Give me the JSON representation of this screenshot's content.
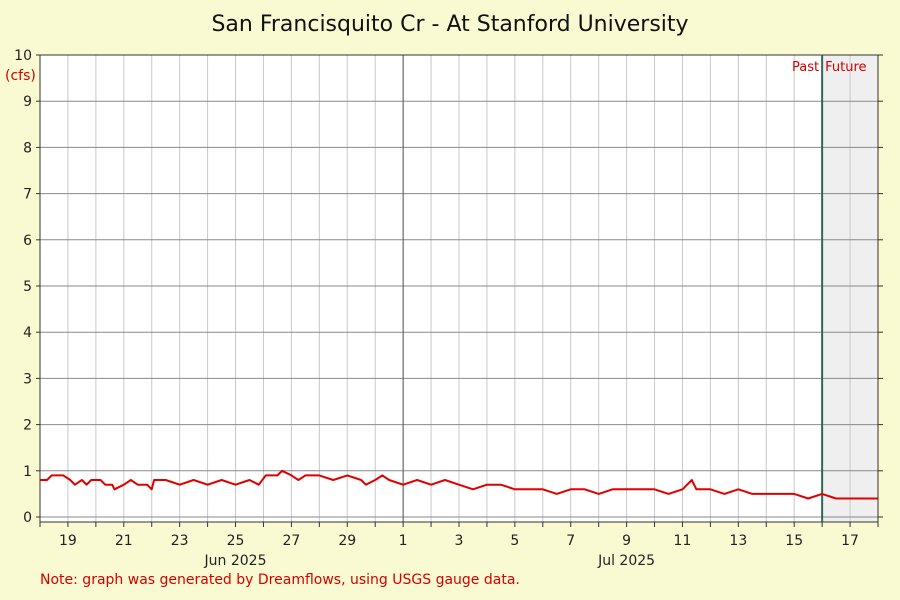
{
  "chart_data": {
    "type": "line",
    "title": "San Francisquito Cr - At Stanford University",
    "ylabel": "(cfs)",
    "xlabel": "",
    "ylim": [
      0,
      10
    ],
    "y_ticks": [
      "0",
      "1",
      "2",
      "3",
      "4",
      "5",
      "6",
      "7",
      "8",
      "9",
      "10"
    ],
    "xlim": [
      "2025-06-18",
      "2025-07-18"
    ],
    "x_day_ticks": [
      {
        "date": "2025-06-19",
        "label": "19"
      },
      {
        "date": "2025-06-21",
        "label": "21"
      },
      {
        "date": "2025-06-23",
        "label": "23"
      },
      {
        "date": "2025-06-25",
        "label": "25"
      },
      {
        "date": "2025-06-27",
        "label": "27"
      },
      {
        "date": "2025-06-29",
        "label": "29"
      },
      {
        "date": "2025-07-01",
        "label": "1"
      },
      {
        "date": "2025-07-03",
        "label": "3"
      },
      {
        "date": "2025-07-05",
        "label": "5"
      },
      {
        "date": "2025-07-07",
        "label": "7"
      },
      {
        "date": "2025-07-09",
        "label": "9"
      },
      {
        "date": "2025-07-11",
        "label": "11"
      },
      {
        "date": "2025-07-13",
        "label": "13"
      },
      {
        "date": "2025-07-15",
        "label": "15"
      },
      {
        "date": "2025-07-17",
        "label": "17"
      }
    ],
    "x_month_labels": [
      {
        "date": "2025-06-25",
        "label": "Jun 2025"
      },
      {
        "date": "2025-07-09",
        "label": "Jul 2025"
      }
    ],
    "month_boundary": "2025-07-01",
    "now": "2025-07-16",
    "past_label": "Past",
    "future_label": "Future",
    "series": [
      {
        "color": "#e00000",
        "points": [
          [
            "2025-06-18",
            0.8
          ],
          [
            "2025-06-18 06:00",
            0.8
          ],
          [
            "2025-06-18 10:00",
            0.9
          ],
          [
            "2025-06-18 20:00",
            0.9
          ],
          [
            "2025-06-19 02:00",
            0.8
          ],
          [
            "2025-06-19 06:00",
            0.7
          ],
          [
            "2025-06-19 12:00",
            0.8
          ],
          [
            "2025-06-19 16:00",
            0.7
          ],
          [
            "2025-06-19 20:00",
            0.8
          ],
          [
            "2025-06-20 04:00",
            0.8
          ],
          [
            "2025-06-20 08:00",
            0.7
          ],
          [
            "2025-06-20 14:00",
            0.7
          ],
          [
            "2025-06-20 16:00",
            0.6
          ],
          [
            "2025-06-21",
            0.7
          ],
          [
            "2025-06-21 06:00",
            0.8
          ],
          [
            "2025-06-21 12:00",
            0.7
          ],
          [
            "2025-06-21 20:00",
            0.7
          ],
          [
            "2025-06-22",
            0.6
          ],
          [
            "2025-06-22 02:00",
            0.8
          ],
          [
            "2025-06-22 08:00",
            0.8
          ],
          [
            "2025-06-22 12:00",
            0.8
          ],
          [
            "2025-06-23",
            0.7
          ],
          [
            "2025-06-23 12:00",
            0.8
          ],
          [
            "2025-06-24",
            0.7
          ],
          [
            "2025-06-24 12:00",
            0.8
          ],
          [
            "2025-06-25",
            0.7
          ],
          [
            "2025-06-25 12:00",
            0.8
          ],
          [
            "2025-06-25 20:00",
            0.7
          ],
          [
            "2025-06-26 02:00",
            0.9
          ],
          [
            "2025-06-26 12:00",
            0.9
          ],
          [
            "2025-06-26 16:00",
            1.0
          ],
          [
            "2025-06-27",
            0.9
          ],
          [
            "2025-06-27 06:00",
            0.8
          ],
          [
            "2025-06-27 12:00",
            0.9
          ],
          [
            "2025-06-28",
            0.9
          ],
          [
            "2025-06-28 12:00",
            0.8
          ],
          [
            "2025-06-29",
            0.9
          ],
          [
            "2025-06-29 12:00",
            0.8
          ],
          [
            "2025-06-29 16:00",
            0.7
          ],
          [
            "2025-06-30",
            0.8
          ],
          [
            "2025-06-30 06:00",
            0.9
          ],
          [
            "2025-06-30 12:00",
            0.8
          ],
          [
            "2025-07-01",
            0.7
          ],
          [
            "2025-07-01 12:00",
            0.8
          ],
          [
            "2025-07-02",
            0.7
          ],
          [
            "2025-07-02 12:00",
            0.8
          ],
          [
            "2025-07-03",
            0.7
          ],
          [
            "2025-07-03 12:00",
            0.6
          ],
          [
            "2025-07-04",
            0.7
          ],
          [
            "2025-07-04 12:00",
            0.7
          ],
          [
            "2025-07-05",
            0.6
          ],
          [
            "2025-07-05 12:00",
            0.6
          ],
          [
            "2025-07-06",
            0.6
          ],
          [
            "2025-07-06 12:00",
            0.5
          ],
          [
            "2025-07-07",
            0.6
          ],
          [
            "2025-07-07 12:00",
            0.6
          ],
          [
            "2025-07-08",
            0.5
          ],
          [
            "2025-07-08 12:00",
            0.6
          ],
          [
            "2025-07-09",
            0.6
          ],
          [
            "2025-07-09 12:00",
            0.6
          ],
          [
            "2025-07-10",
            0.6
          ],
          [
            "2025-07-10 12:00",
            0.5
          ],
          [
            "2025-07-11",
            0.6
          ],
          [
            "2025-07-11 04:00",
            0.7
          ],
          [
            "2025-07-11 08:00",
            0.8
          ],
          [
            "2025-07-11 12:00",
            0.6
          ],
          [
            "2025-07-12",
            0.6
          ],
          [
            "2025-07-12 12:00",
            0.5
          ],
          [
            "2025-07-13",
            0.6
          ],
          [
            "2025-07-13 12:00",
            0.5
          ],
          [
            "2025-07-14",
            0.5
          ],
          [
            "2025-07-14 12:00",
            0.5
          ],
          [
            "2025-07-15",
            0.5
          ],
          [
            "2025-07-15 12:00",
            0.4
          ],
          [
            "2025-07-16",
            0.5
          ],
          [
            "2025-07-16 12:00",
            0.4
          ],
          [
            "2025-07-17",
            0.4
          ],
          [
            "2025-07-17 12:00",
            0.4
          ],
          [
            "2025-07-18",
            0.4
          ]
        ]
      }
    ]
  },
  "note": "Note: graph was generated by Dreamflows, using USGS gauge data."
}
